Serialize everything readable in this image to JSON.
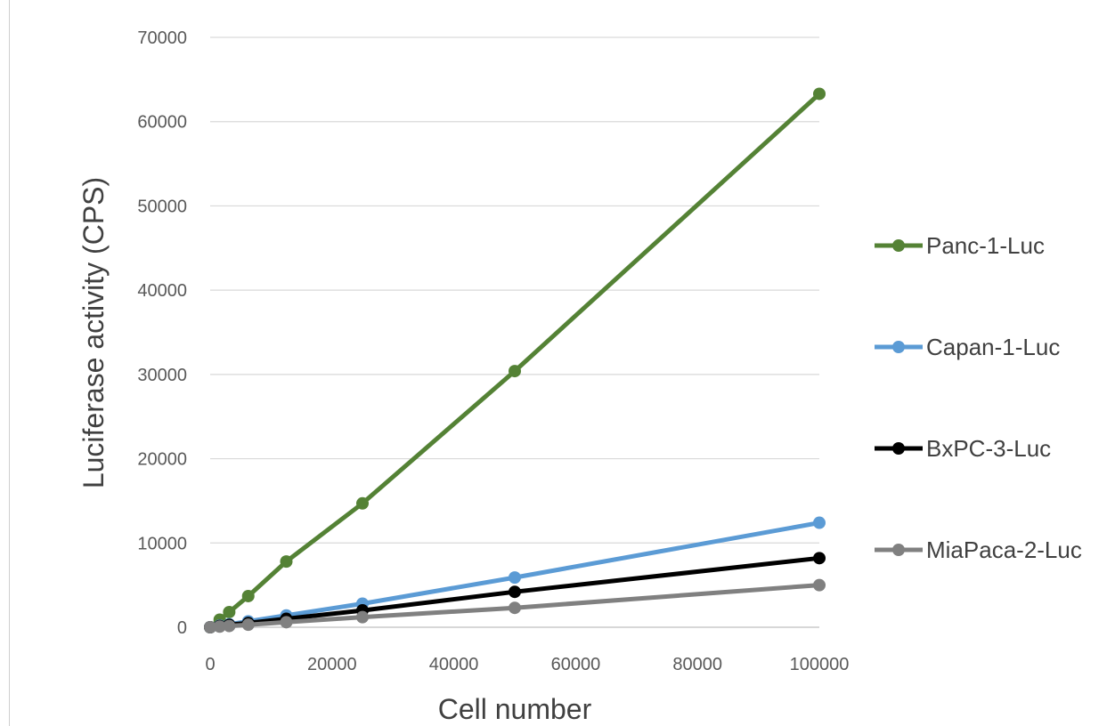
{
  "chart_data": {
    "type": "line",
    "title": "",
    "xlabel": "Cell number",
    "ylabel": "Luciferase activity (CPS)",
    "xlim": [
      0,
      100000
    ],
    "ylim": [
      0,
      70000
    ],
    "x_ticks": [
      "0",
      "20000",
      "40000",
      "60000",
      "80000",
      "100000"
    ],
    "y_ticks": [
      "0",
      "10000",
      "20000",
      "30000",
      "40000",
      "50000",
      "60000",
      "70000"
    ],
    "grid": "horizontal",
    "legend_position": "right",
    "x": [
      0,
      1563,
      3125,
      6250,
      12500,
      25000,
      50000,
      100000
    ],
    "series": [
      {
        "name": "Panc-1-Luc",
        "color": "#548235",
        "values": [
          0,
          900,
          1800,
          3700,
          7800,
          14700,
          30400,
          63300
        ]
      },
      {
        "name": "Capan-1-Luc",
        "color": "#5B9BD5",
        "values": [
          0,
          200,
          350,
          700,
          1400,
          2800,
          5900,
          12400
        ]
      },
      {
        "name": "BxPC-3-Luc",
        "color": "#000000",
        "values": [
          0,
          150,
          280,
          500,
          1000,
          2000,
          4200,
          8200
        ]
      },
      {
        "name": "MiaPaca-2-Luc",
        "color": "#808080",
        "values": [
          0,
          80,
          150,
          300,
          600,
          1200,
          2300,
          5000
        ]
      }
    ]
  }
}
